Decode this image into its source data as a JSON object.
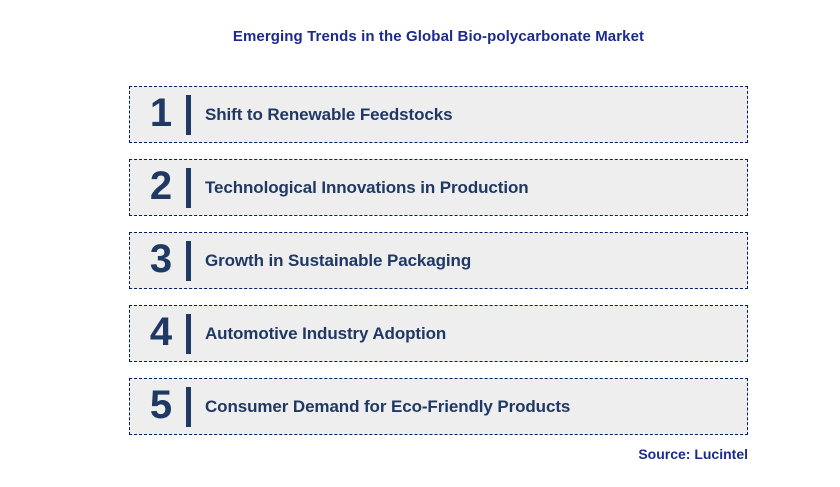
{
  "title": "Emerging Trends in the Global Bio-polycarbonate Market",
  "trends": [
    {
      "number": "1",
      "label": "Shift to Renewable Feedstocks"
    },
    {
      "number": "2",
      "label": "Technological Innovations in Production"
    },
    {
      "number": "3",
      "label": "Growth in Sustainable Packaging"
    },
    {
      "number": "4",
      "label": "Automotive Industry Adoption"
    },
    {
      "number": "5",
      "label": "Consumer Demand for Eco-Friendly Products"
    }
  ],
  "source": "Source: Lucintel",
  "colors": {
    "title_blue": "#1B2A8C",
    "content_navy": "#1F3864",
    "row_background": "#EEEEEE",
    "border_navy": "#002060",
    "page_background": "#FFFFFF"
  }
}
